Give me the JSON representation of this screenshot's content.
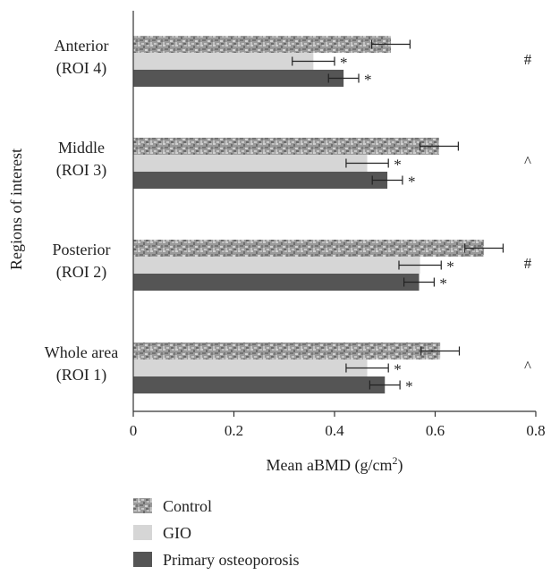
{
  "chart_data": {
    "type": "bar",
    "orientation": "horizontal",
    "title": "",
    "xlabel": "Mean aBMD (g/cm",
    "xlabel_superscript": "2",
    "xlabel_suffix": ")",
    "ylabel": "Regions of interest",
    "xlim": [
      0,
      0.8
    ],
    "x_ticks": [
      "0",
      "0.2",
      "0.4",
      "0.6",
      "0.8"
    ],
    "categories": [
      {
        "line1": "Anterior",
        "line2": "(ROI 4)"
      },
      {
        "line1": "Middle",
        "line2": "(ROI 3)"
      },
      {
        "line1": "Posterior",
        "line2": "(ROI 2)"
      },
      {
        "line1": "Whole area",
        "line2": "(ROI 1)"
      }
    ],
    "series": [
      {
        "name": "Control",
        "values": [
          0.512,
          0.608,
          0.697,
          0.61
        ],
        "errors": [
          0.038,
          0.038,
          0.038,
          0.038
        ],
        "markers": [
          "",
          "",
          "",
          ""
        ],
        "color": "#8c8c8c",
        "pattern": "mottled"
      },
      {
        "name": "GIO",
        "values": [
          0.358,
          0.465,
          0.57,
          0.465
        ],
        "errors": [
          0.042,
          0.042,
          0.042,
          0.042
        ],
        "markers": [
          "*",
          "*",
          "*",
          "*"
        ],
        "color": "#d6d6d6"
      },
      {
        "name": "Primary osteoporosis",
        "values": [
          0.418,
          0.505,
          0.568,
          0.5
        ],
        "errors": [
          0.03,
          0.03,
          0.03,
          0.03
        ],
        "markers": [
          "*",
          "*",
          "*",
          "*"
        ],
        "color": "#555555"
      }
    ],
    "group_annotations": [
      "#",
      "^",
      "#",
      "^"
    ],
    "grid": false,
    "legend_position": "bottom-left"
  }
}
